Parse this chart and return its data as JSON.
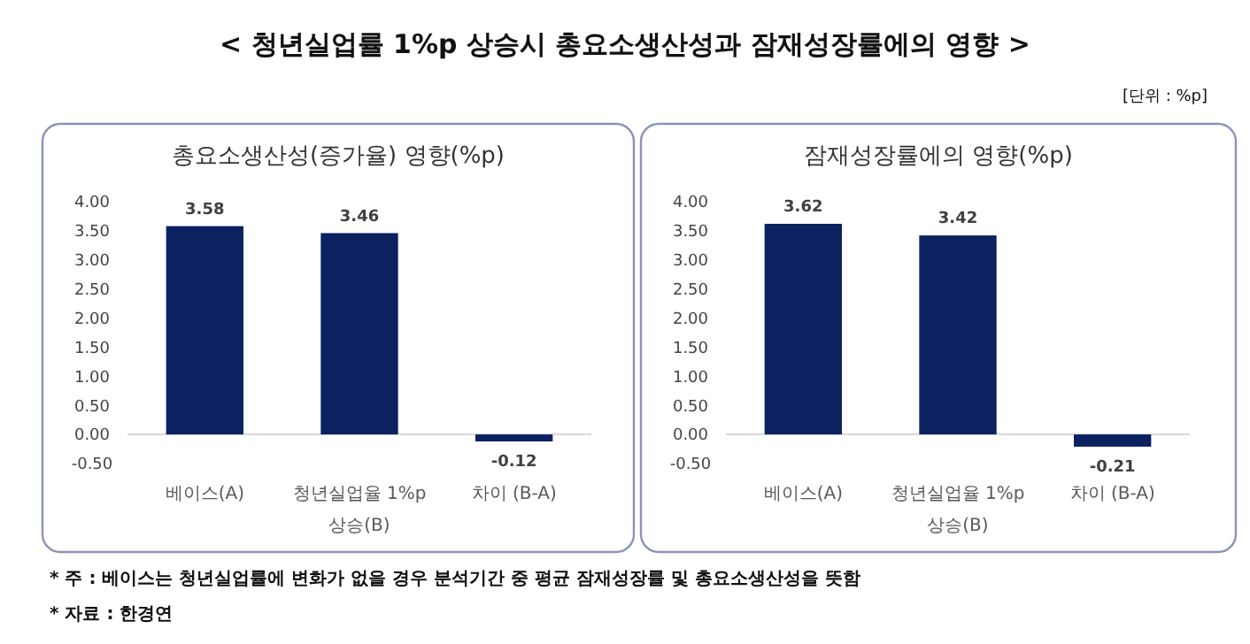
{
  "chart_data": [
    {
      "type": "bar",
      "title": "총요소생산성(증가율) 영향(%p)",
      "categories": [
        "베이스(A)",
        "청년실업율 1%p 상승(B)",
        "차이 (B-A)"
      ],
      "values": [
        3.58,
        3.46,
        -0.12
      ],
      "color": "#0c2160",
      "ylim": [
        -0.5,
        4
      ],
      "yticks": [
        {
          "value": -0.5,
          "label": "-0.50"
        },
        {
          "value": 0,
          "label": "0.00"
        },
        {
          "value": 0.5,
          "label": "0.50"
        },
        {
          "value": 1,
          "label": "1.00"
        },
        {
          "value": 1.5,
          "label": "1.50"
        },
        {
          "value": 2,
          "label": "2.00"
        },
        {
          "value": 2.5,
          "label": "2.50"
        },
        {
          "value": 3,
          "label": "3.00"
        },
        {
          "value": 3.5,
          "label": "3.50"
        },
        {
          "value": 4,
          "label": "4.00"
        }
      ],
      "data_labels": true,
      "annotations": [
        "< 청년실업률 1%p 상승시 총요소생산성과 잠재성장률에의 영향 >",
        "[단위 : %p]",
        "* 주 : 베이스는 청년실업률에 변화가 없을 경우 분석기간 중 평균 잠재성장률 및 총요소생산성을 뜻함",
        "* 자료 : 한경연"
      ]
    },
    {
      "type": "bar",
      "title": "잠재성장률에의 영향(%p)",
      "categories": [
        "베이스(A)",
        "청년실업율 1%p 상승(B)",
        "차이 (B-A)"
      ],
      "values": [
        3.62,
        3.42,
        -0.21
      ],
      "color": "#0c2160",
      "ylim": [
        -0.5,
        4
      ],
      "yticks": [
        {
          "value": -0.5,
          "label": "-0.50"
        },
        {
          "value": 0,
          "label": "0.00"
        },
        {
          "value": 0.5,
          "label": "0.50"
        },
        {
          "value": 1,
          "label": "1.00"
        },
        {
          "value": 1.5,
          "label": "1.50"
        },
        {
          "value": 2,
          "label": "2.00"
        },
        {
          "value": 2.5,
          "label": "2.50"
        },
        {
          "value": 3,
          "label": "3.00"
        },
        {
          "value": 3.5,
          "label": "3.50"
        },
        {
          "value": 4,
          "label": "4.00"
        }
      ],
      "data_labels": true
    }
  ]
}
